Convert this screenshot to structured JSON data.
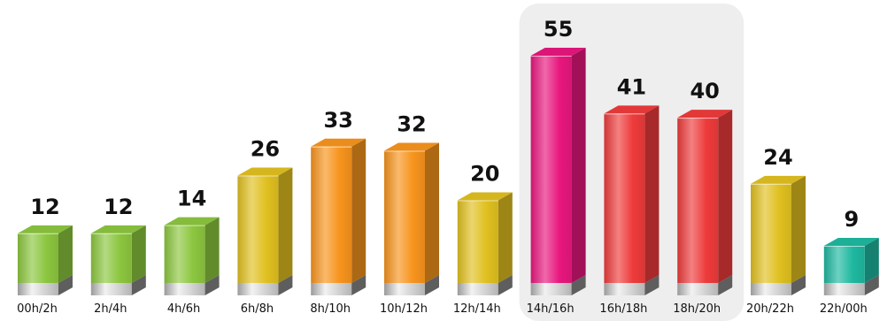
{
  "chart_data": {
    "type": "bar",
    "title": "",
    "xlabel": "",
    "ylabel": "",
    "categories": [
      "00h/2h",
      "2h/4h",
      "4h/6h",
      "6h/8h",
      "8h/10h",
      "10h/12h",
      "12h/14h",
      "14h/16h",
      "16h/18h",
      "18h/20h",
      "20h/22h",
      "22h/00h"
    ],
    "values": [
      12,
      12,
      14,
      26,
      33,
      32,
      20,
      55,
      41,
      40,
      24,
      9
    ],
    "ylim": [
      0,
      55
    ],
    "grid": false,
    "legend": "none",
    "bar_colors": [
      "#8cc63f",
      "#8cc63f",
      "#8cc63f",
      "#e0c020",
      "#f7941d",
      "#f7941d",
      "#e0c020",
      "#e8177e",
      "#ee3b3b",
      "#ee3b3b",
      "#e0c020",
      "#1fb8a0"
    ],
    "highlight_band": {
      "from_category": "14h/16h",
      "to_category": "18h/20h",
      "color": "#eeeeee"
    },
    "data_labels": true
  }
}
